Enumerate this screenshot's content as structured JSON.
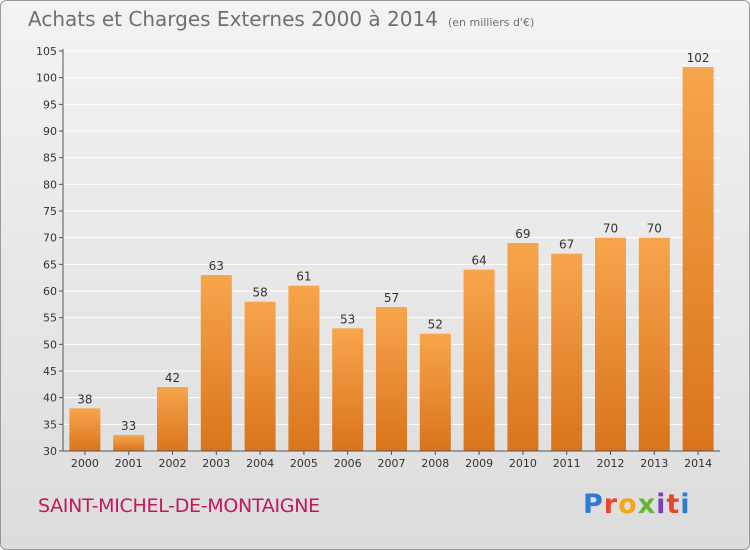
{
  "header": {
    "title": "Achats et Charges Externes 2000 à 2014",
    "unit": "(en milliers d'€)"
  },
  "footer": {
    "commune": "SAINT-MICHEL-DE-MONTAIGNE",
    "logo_text": "Proxiti",
    "logo_colors": [
      "#2e7bd6",
      "#e8452c",
      "#f2a81d",
      "#67b536",
      "#7d3fb5",
      "#e8452c",
      "#2e7bd6"
    ]
  },
  "colors": {
    "bar_light": "#f7a54c",
    "bar_dark": "#d9741c",
    "grid": "#ffffff",
    "axis_text": "#333333"
  },
  "chart_data": {
    "type": "bar",
    "categories": [
      "2000",
      "2001",
      "2002",
      "2003",
      "2004",
      "2005",
      "2006",
      "2007",
      "2008",
      "2009",
      "2010",
      "2011",
      "2012",
      "2013",
      "2014"
    ],
    "values": [
      38,
      33,
      42,
      63,
      58,
      61,
      53,
      57,
      52,
      64,
      69,
      67,
      70,
      70,
      102
    ],
    "ylim": [
      30,
      105
    ],
    "yticks": [
      30,
      35,
      40,
      45,
      50,
      55,
      60,
      65,
      70,
      75,
      80,
      85,
      90,
      95,
      100,
      105
    ],
    "grid": true,
    "data_labels": true
  }
}
